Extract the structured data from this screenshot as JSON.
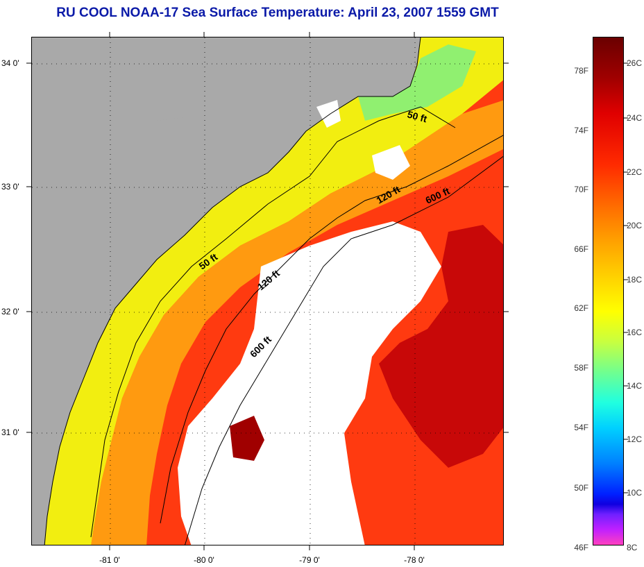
{
  "title": "RU COOL  NOAA-17  Sea Surface Temperature:  April 23, 2007 1559 GMT",
  "lat_labels": [
    "34 0'",
    "33 0'",
    "32 0'",
    "31 0'"
  ],
  "lon_labels": [
    "-81 0'",
    "-80 0'",
    "-79 0'",
    "-78 0'"
  ],
  "contour_labels": [
    "50 ft",
    "120 ft",
    "600 ft",
    "50 ft",
    "120 ft",
    "600 ft"
  ],
  "colorbar_f": [
    "78F",
    "74F",
    "70F",
    "66F",
    "62F",
    "58F",
    "54F",
    "50F",
    "46F"
  ],
  "colorbar_c": [
    "26C",
    "24C",
    "22C",
    "20C",
    "18C",
    "16C",
    "14C",
    "12C",
    "10C",
    "8C"
  ],
  "colors": {
    "land": "#a9a9a9",
    "cloud": "#ffffff",
    "title": "#0b1aa8"
  }
}
